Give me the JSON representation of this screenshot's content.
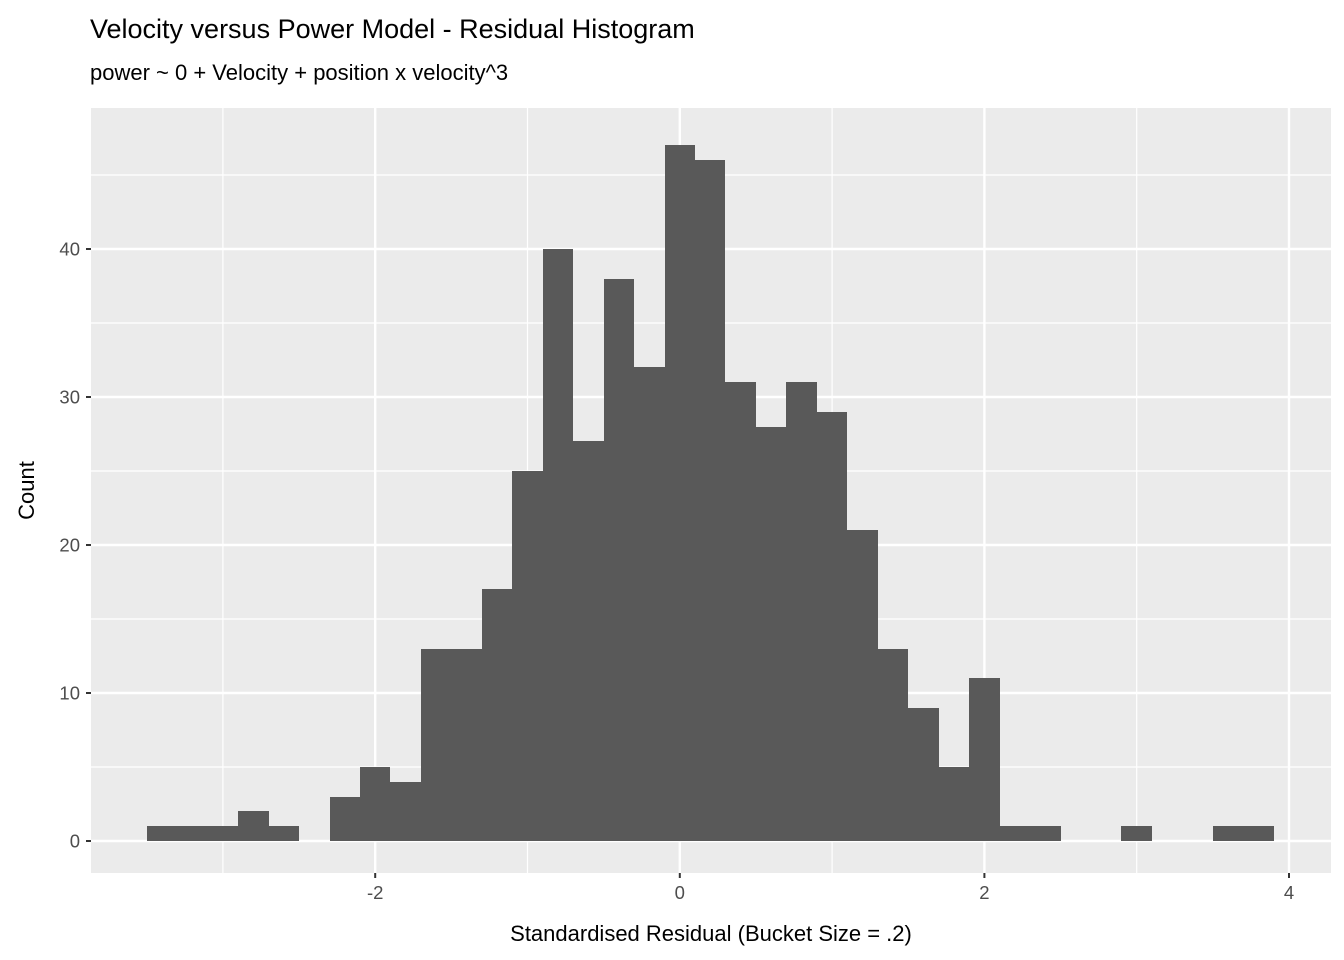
{
  "chart_data": {
    "type": "bar",
    "subtype": "histogram",
    "title": "Velocity versus Power Model - Residual Histogram",
    "subtitle": "power ~ 0 + Velocity + position x velocity^3",
    "xlabel": "Standardised Residual (Bucket Size = .2)",
    "ylabel": "Count",
    "bin_width": 0.2,
    "bin_centers": [
      -3.4,
      -3.2,
      -3.0,
      -2.8,
      -2.6,
      -2.4,
      -2.2,
      -2.0,
      -1.8,
      -1.6,
      -1.4,
      -1.2,
      -1.0,
      -0.8,
      -0.6,
      -0.4,
      -0.2,
      0.0,
      0.2,
      0.4,
      0.6,
      0.8,
      1.0,
      1.2,
      1.4,
      1.6,
      1.8,
      2.0,
      2.2,
      2.4,
      2.6,
      2.8,
      3.0,
      3.2,
      3.4,
      3.6,
      3.8
    ],
    "counts": [
      1,
      1,
      1,
      2,
      1,
      0,
      3,
      5,
      4,
      13,
      13,
      17,
      25,
      40,
      27,
      38,
      32,
      47,
      46,
      31,
      28,
      31,
      29,
      21,
      13,
      9,
      5,
      11,
      1,
      1,
      0,
      0,
      1,
      0,
      0,
      1,
      1
    ],
    "x_ticks": [
      -2,
      0,
      2,
      4
    ],
    "x_minor_ticks": [
      -3,
      -1,
      1,
      3
    ],
    "y_ticks": [
      0,
      10,
      20,
      30,
      40
    ],
    "y_minor_ticks": [
      5,
      15,
      25,
      35,
      45
    ],
    "xlim": [
      -3.87,
      4.28
    ],
    "ylim": [
      -2.2,
      49.5
    ],
    "grid": "major+minor, white on gray panel",
    "legend_position": "none",
    "colors": {
      "bar_fill": "#595959",
      "panel_background": "#EBEBEB",
      "gridline": "#FFFFFF",
      "tick_text": "#4D4D4D",
      "tick_mark": "#333333",
      "title_text": "#000000",
      "figure_background": "#FFFFFF"
    }
  }
}
